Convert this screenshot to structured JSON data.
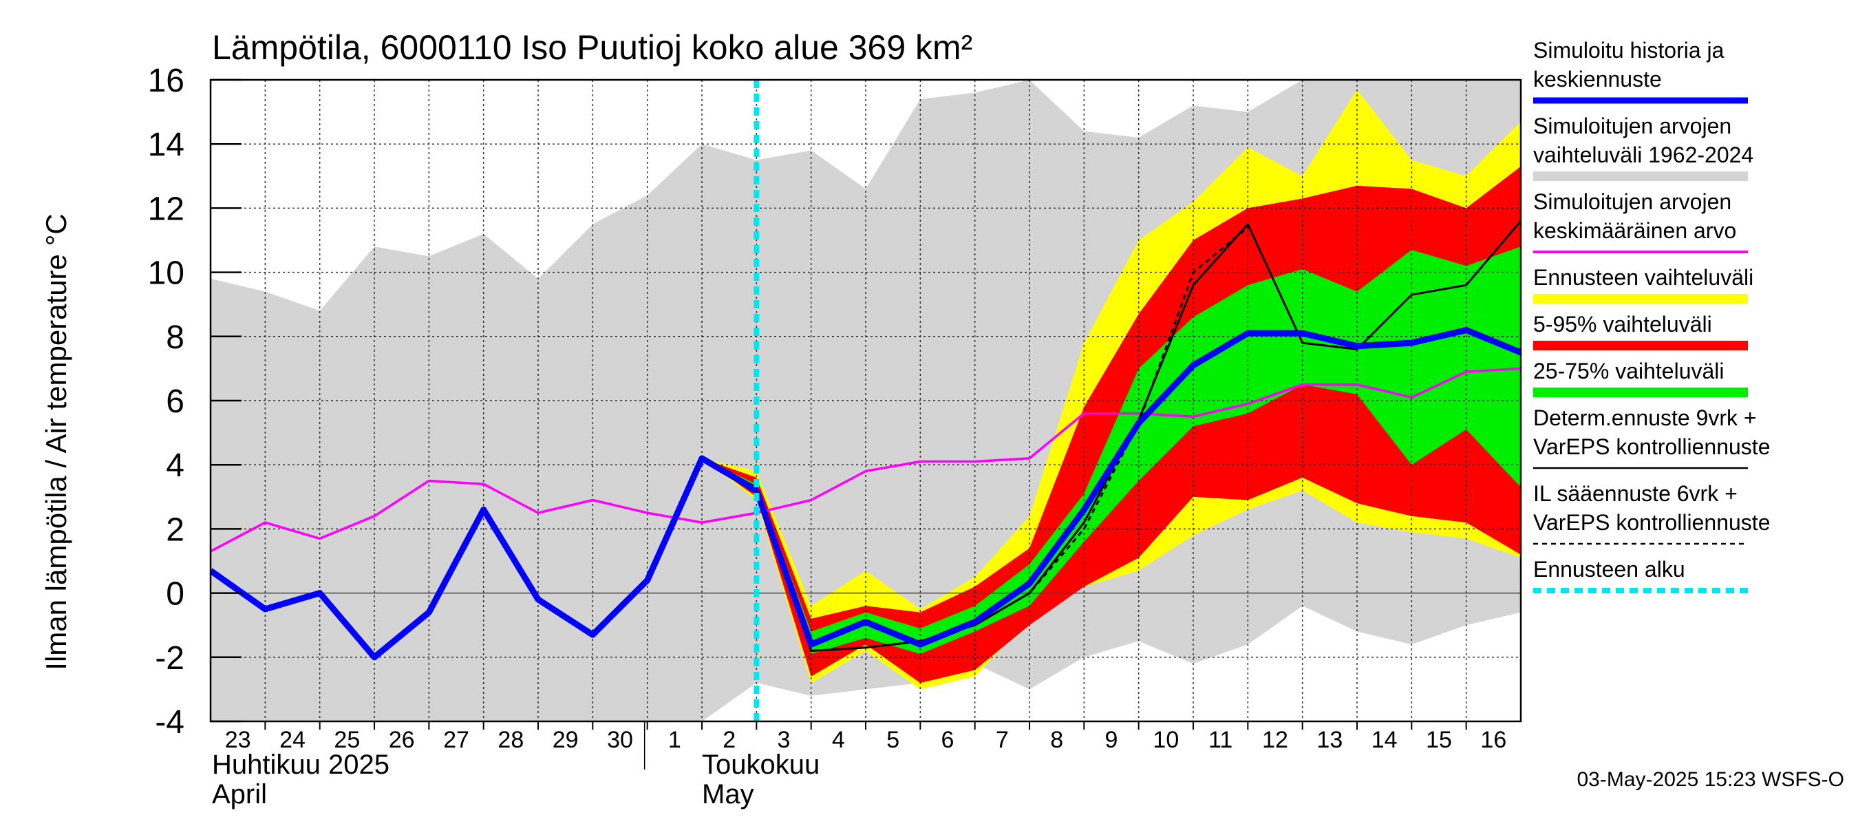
{
  "chart_data": {
    "type": "area",
    "title": "Lämpötila, 6000110 Iso Puutioj koko alue 369 km²",
    "ylabel": "Ilman lämpötila / Air temperature    °C",
    "ylim": [
      -4,
      16
    ],
    "yticks": [
      -4,
      -2,
      0,
      2,
      4,
      6,
      8,
      10,
      12,
      14,
      16
    ],
    "grid": true,
    "legend_position": "right",
    "x_start": "2025-04-23",
    "x_end": "2025-05-17",
    "day_labels": [
      "23",
      "24",
      "25",
      "26",
      "27",
      "28",
      "29",
      "30",
      "1",
      "2",
      "3",
      "4",
      "5",
      "6",
      "7",
      "8",
      "9",
      "10",
      "11",
      "12",
      "13",
      "14",
      "15",
      "16"
    ],
    "month_labels": [
      {
        "line1": "Huhtikuu  2025",
        "line2": "April"
      },
      {
        "line1": "Toukokuu",
        "line2": "May"
      }
    ],
    "forecast_start": "2025-05-03",
    "timestamp": "03-May-2025 15:23 WSFS-O",
    "legend": [
      {
        "text": [
          "Simuloitu historia ja",
          "keskiennuste"
        ],
        "color": "#0000ff",
        "style": "thick"
      },
      {
        "text": [
          "Simuloitujen arvojen",
          "vaihteluväli 1962-2024"
        ],
        "color": "#d4d4d4",
        "style": "band"
      },
      {
        "text": [
          "Simuloitujen arvojen",
          "keskimääräinen arvo"
        ],
        "color": "#ff00ff",
        "style": "line"
      },
      {
        "text": [
          "Ennusteen vaihteluväli"
        ],
        "color": "#ffff00",
        "style": "band"
      },
      {
        "text": [
          "5-95% vaihteluväli"
        ],
        "color": "#ff0000",
        "style": "band"
      },
      {
        "text": [
          "25-75% vaihteluväli"
        ],
        "color": "#00ee00",
        "style": "band"
      },
      {
        "text": [
          "Determ.ennuste 9vrk +",
          "VarEPS kontrolliennuste"
        ],
        "color": "#000000",
        "style": "thin"
      },
      {
        "text": [
          "IL sääennuste 6vrk  +",
          "  VarEPS kontrolliennuste"
        ],
        "color": "#000000",
        "style": "dashed"
      },
      {
        "text": [
          "Ennusteen alku"
        ],
        "color": "#00e5ee",
        "style": "dotted"
      }
    ],
    "series": {
      "hist_range": {
        "x": [
          "2025-04-23",
          "2025-04-24",
          "2025-04-25",
          "2025-04-26",
          "2025-04-27",
          "2025-04-28",
          "2025-04-29",
          "2025-04-30",
          "2025-05-01",
          "2025-05-02",
          "2025-05-03",
          "2025-05-04",
          "2025-05-05",
          "2025-05-06",
          "2025-05-07",
          "2025-05-08",
          "2025-05-09",
          "2025-05-10",
          "2025-05-11",
          "2025-05-12",
          "2025-05-13",
          "2025-05-14",
          "2025-05-15",
          "2025-05-16",
          "2025-05-17"
        ],
        "upper": [
          9.8,
          9.4,
          8.8,
          10.8,
          10.5,
          11.2,
          9.8,
          11.5,
          12.4,
          14.0,
          13.5,
          13.8,
          12.6,
          15.4,
          15.6,
          16.0,
          14.4,
          14.2,
          15.2,
          15.0,
          16.0,
          16.0,
          16.0,
          16.0,
          16.0
        ],
        "lower": [
          -4,
          -4,
          -4,
          -4,
          -4,
          -4,
          -4,
          -4,
          -4,
          -4,
          -2.8,
          -3.2,
          -3.0,
          -2.8,
          -2.2,
          -3.0,
          -2.0,
          -1.5,
          -2.2,
          -1.6,
          -0.4,
          -1.2,
          -1.6,
          -1.0,
          -0.6
        ]
      },
      "mean": {
        "x": [
          "2025-04-23",
          "2025-04-24",
          "2025-04-25",
          "2025-04-26",
          "2025-04-27",
          "2025-04-28",
          "2025-04-29",
          "2025-04-30",
          "2025-05-01",
          "2025-05-02",
          "2025-05-03",
          "2025-05-04",
          "2025-05-05",
          "2025-05-06",
          "2025-05-07",
          "2025-05-08",
          "2025-05-09",
          "2025-05-10",
          "2025-05-11",
          "2025-05-12",
          "2025-05-13",
          "2025-05-14",
          "2025-05-15",
          "2025-05-16",
          "2025-05-17"
        ],
        "values": [
          1.3,
          2.2,
          1.7,
          2.4,
          3.5,
          3.4,
          2.5,
          2.9,
          2.5,
          2.2,
          2.5,
          2.9,
          3.8,
          4.1,
          4.1,
          4.2,
          5.6,
          5.6,
          5.5,
          5.9,
          6.5,
          6.5,
          6.1,
          6.9,
          7.0
        ]
      },
      "sim_history": {
        "x": [
          "2025-04-23",
          "2025-04-24",
          "2025-04-25",
          "2025-04-26",
          "2025-04-27",
          "2025-04-28",
          "2025-04-29",
          "2025-04-30",
          "2025-05-01",
          "2025-05-02",
          "2025-05-03"
        ],
        "values": [
          0.7,
          -0.5,
          0.0,
          -2.0,
          -0.6,
          2.6,
          -0.2,
          -1.3,
          0.4,
          4.2,
          3.2
        ]
      },
      "ens_range": {
        "x": [
          "2025-05-02",
          "2025-05-03",
          "2025-05-04",
          "2025-05-05",
          "2025-05-06",
          "2025-05-07",
          "2025-05-08",
          "2025-05-09",
          "2025-05-10",
          "2025-05-11",
          "2025-05-12",
          "2025-05-13",
          "2025-05-14",
          "2025-05-15",
          "2025-05-16",
          "2025-05-17"
        ],
        "upper": [
          4.2,
          3.8,
          -0.4,
          0.7,
          -0.5,
          0.5,
          2.4,
          7.8,
          11.0,
          12.2,
          13.9,
          13.0,
          15.7,
          13.5,
          13.0,
          14.7
        ],
        "lower": [
          4.2,
          2.9,
          -2.8,
          -1.8,
          -3.0,
          -2.6,
          -0.8,
          0.2,
          0.7,
          1.8,
          2.6,
          3.2,
          2.2,
          1.9,
          1.7,
          1.1
        ]
      },
      "p5_95": {
        "x": [
          "2025-05-02",
          "2025-05-03",
          "2025-05-04",
          "2025-05-05",
          "2025-05-06",
          "2025-05-07",
          "2025-05-08",
          "2025-05-09",
          "2025-05-10",
          "2025-05-11",
          "2025-05-12",
          "2025-05-13",
          "2025-05-14",
          "2025-05-15",
          "2025-05-16",
          "2025-05-17"
        ],
        "upper": [
          4.2,
          3.6,
          -0.8,
          -0.4,
          -0.6,
          0.2,
          1.4,
          5.8,
          8.7,
          11.0,
          12.0,
          12.3,
          12.7,
          12.6,
          12.0,
          13.3
        ],
        "lower": [
          4.2,
          3.0,
          -2.6,
          -1.6,
          -2.8,
          -2.4,
          -1.0,
          0.2,
          1.1,
          3.0,
          2.9,
          3.6,
          2.8,
          2.4,
          2.2,
          1.2
        ]
      },
      "p25_75": {
        "x": [
          "2025-05-02",
          "2025-05-03",
          "2025-05-04",
          "2025-05-05",
          "2025-05-06",
          "2025-05-07",
          "2025-05-08",
          "2025-05-09",
          "2025-05-10",
          "2025-05-11",
          "2025-05-12",
          "2025-05-13",
          "2025-05-14",
          "2025-05-15",
          "2025-05-16",
          "2025-05-17"
        ],
        "upper": [
          4.2,
          3.4,
          -1.2,
          -0.6,
          -1.1,
          -0.4,
          0.9,
          3.1,
          7.0,
          8.6,
          9.6,
          10.1,
          9.4,
          10.7,
          10.2,
          10.8
        ],
        "lower": [
          4.2,
          3.1,
          -1.9,
          -1.4,
          -1.9,
          -1.2,
          -0.4,
          1.6,
          3.5,
          5.2,
          5.6,
          6.5,
          6.2,
          4.0,
          5.1,
          3.3
        ]
      },
      "ens_mean": {
        "x": [
          "2025-05-03",
          "2025-05-04",
          "2025-05-05",
          "2025-05-06",
          "2025-05-07",
          "2025-05-08",
          "2025-05-09",
          "2025-05-10",
          "2025-05-11",
          "2025-05-12",
          "2025-05-13",
          "2025-05-14",
          "2025-05-15",
          "2025-05-16",
          "2025-05-17"
        ],
        "values": [
          3.2,
          -1.6,
          -0.9,
          -1.6,
          -0.9,
          0.3,
          2.6,
          5.3,
          7.1,
          8.1,
          8.1,
          7.7,
          7.8,
          8.2,
          7.5
        ]
      },
      "determ": {
        "x": [
          "2025-05-02",
          "2025-05-03",
          "2025-05-04",
          "2025-05-05",
          "2025-05-06",
          "2025-05-07",
          "2025-05-08",
          "2025-05-09",
          "2025-05-10",
          "2025-05-11",
          "2025-05-12",
          "2025-05-13",
          "2025-05-14",
          "2025-05-15",
          "2025-05-16",
          "2025-05-17"
        ],
        "values": [
          4.2,
          3.3,
          -1.8,
          -1.7,
          -1.5,
          -1.0,
          0.0,
          2.2,
          5.4,
          9.6,
          11.5,
          7.8,
          7.6,
          9.3,
          9.6,
          11.6
        ]
      },
      "il_forecast": {
        "x": [
          "2025-05-02",
          "2025-05-03",
          "2025-05-04",
          "2025-05-05",
          "2025-05-06",
          "2025-05-07",
          "2025-05-08",
          "2025-05-09",
          "2025-05-10",
          "2025-05-11",
          "2025-05-12"
        ],
        "values": [
          4.2,
          3.1,
          -1.8,
          -1.7,
          -1.5,
          -1.0,
          0.0,
          2.0,
          5.3,
          10.0,
          11.4
        ]
      }
    }
  }
}
